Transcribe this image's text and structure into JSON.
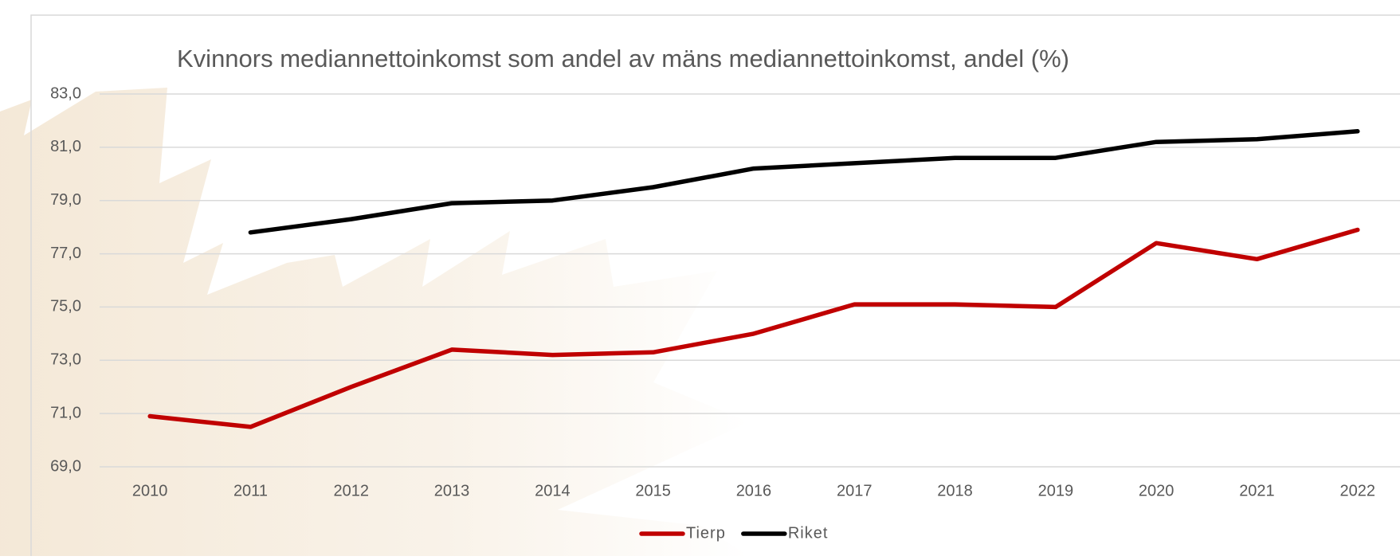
{
  "chart_data": {
    "type": "line",
    "title": "Kvinnors mediannettoinkomst som andel av mäns mediannettoinkomst, andel (%)",
    "categories": [
      "2010",
      "2011",
      "2012",
      "2013",
      "2014",
      "2015",
      "2016",
      "2017",
      "2018",
      "2019",
      "2020",
      "2021",
      "2022"
    ],
    "series": [
      {
        "name": "Tierp",
        "color": "#c00000",
        "values": [
          70.9,
          70.5,
          72.0,
          73.4,
          73.2,
          73.3,
          74.0,
          75.1,
          75.1,
          75.0,
          77.4,
          76.8,
          77.9
        ]
      },
      {
        "name": "Riket",
        "color": "#000000",
        "values": [
          null,
          77.8,
          78.3,
          78.9,
          79.0,
          79.5,
          80.2,
          80.4,
          80.6,
          80.6,
          81.2,
          81.3,
          81.6
        ]
      }
    ],
    "ylim": [
      69,
      83
    ],
    "yticks": [
      {
        "value": 69,
        "label": "69,0"
      },
      {
        "value": 71,
        "label": "71,0"
      },
      {
        "value": 73,
        "label": "73,0"
      },
      {
        "value": 75,
        "label": "75,0"
      },
      {
        "value": 77,
        "label": "77,0"
      },
      {
        "value": 79,
        "label": "79,0"
      },
      {
        "value": 81,
        "label": "81,0"
      },
      {
        "value": 83,
        "label": "83,0"
      }
    ],
    "grid": true,
    "legend": "bottom"
  }
}
